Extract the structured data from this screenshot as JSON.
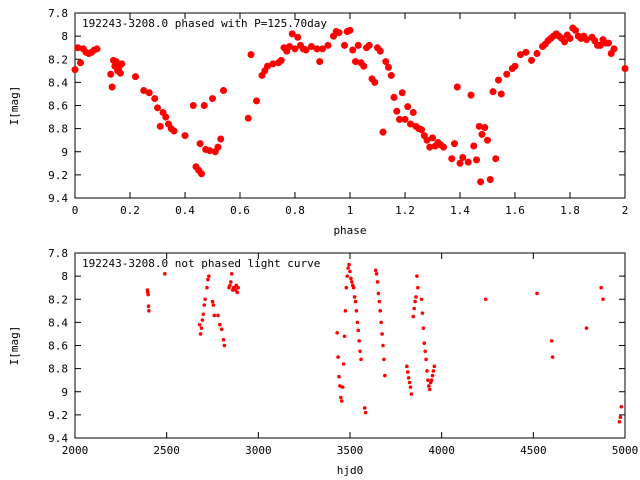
{
  "chart_data": [
    {
      "type": "scatter",
      "title": "192243-3208.0 phased with P=125.70day",
      "xlabel": "phase",
      "ylabel": "I[mag]",
      "xlim": [
        0,
        2
      ],
      "ylim": [
        7.8,
        9.4
      ],
      "y_inverted": true,
      "xticks": [
        "0",
        "0.2",
        "0.4",
        "0.6",
        "0.8",
        "1",
        "1.2",
        "1.4",
        "1.6",
        "1.8",
        "2"
      ],
      "yticks": [
        "7.8",
        "8",
        "8.2",
        "8.4",
        "8.6",
        "8.8",
        "9",
        "9.2",
        "9.4"
      ],
      "marker": "filled-circle-large",
      "color": "#ff0000",
      "series": [
        {
          "points": [
            [
              0.0,
              8.29
            ],
            [
              0.01,
              8.1
            ],
            [
              0.02,
              8.23
            ],
            [
              0.03,
              8.11
            ],
            [
              0.04,
              8.14
            ],
            [
              0.05,
              8.15
            ],
            [
              0.06,
              8.14
            ],
            [
              0.07,
              8.12
            ],
            [
              0.08,
              8.11
            ],
            [
              0.13,
              8.33
            ],
            [
              0.135,
              8.44
            ],
            [
              0.14,
              8.21
            ],
            [
              0.145,
              8.26
            ],
            [
              0.15,
              8.22
            ],
            [
              0.155,
              8.3
            ],
            [
              0.16,
              8.27
            ],
            [
              0.165,
              8.32
            ],
            [
              0.17,
              8.24
            ],
            [
              0.22,
              8.35
            ],
            [
              0.25,
              8.47
            ],
            [
              0.27,
              8.49
            ],
            [
              0.29,
              8.54
            ],
            [
              0.3,
              8.62
            ],
            [
              0.31,
              8.78
            ],
            [
              0.32,
              8.66
            ],
            [
              0.33,
              8.7
            ],
            [
              0.34,
              8.76
            ],
            [
              0.35,
              8.8
            ],
            [
              0.36,
              8.82
            ],
            [
              0.4,
              8.86
            ],
            [
              0.43,
              8.6
            ],
            [
              0.44,
              9.13
            ],
            [
              0.45,
              9.16
            ],
            [
              0.455,
              8.93
            ],
            [
              0.46,
              9.19
            ],
            [
              0.47,
              8.6
            ],
            [
              0.475,
              8.98
            ],
            [
              0.49,
              8.99
            ],
            [
              0.5,
              8.54
            ],
            [
              0.51,
              9.0
            ],
            [
              0.52,
              8.96
            ],
            [
              0.53,
              8.89
            ],
            [
              0.54,
              8.47
            ],
            [
              0.63,
              8.71
            ],
            [
              0.64,
              8.16
            ],
            [
              0.66,
              8.56
            ],
            [
              0.68,
              8.34
            ],
            [
              0.69,
              8.3
            ],
            [
              0.7,
              8.26
            ],
            [
              0.72,
              8.24
            ],
            [
              0.74,
              8.23
            ],
            [
              0.75,
              8.21
            ],
            [
              0.76,
              8.1
            ],
            [
              0.77,
              8.13
            ],
            [
              0.78,
              8.09
            ],
            [
              0.79,
              7.98
            ],
            [
              0.8,
              8.11
            ],
            [
              0.81,
              8.01
            ],
            [
              0.82,
              8.08
            ],
            [
              0.83,
              8.11
            ],
            [
              0.84,
              8.12
            ],
            [
              0.86,
              8.09
            ],
            [
              0.88,
              8.11
            ],
            [
              0.89,
              8.22
            ],
            [
              0.9,
              8.11
            ],
            [
              0.92,
              8.08
            ],
            [
              0.94,
              8.0
            ],
            [
              0.95,
              7.96
            ],
            [
              0.96,
              7.97
            ],
            [
              0.98,
              8.08
            ],
            [
              0.99,
              7.96
            ],
            [
              1.0,
              7.95
            ],
            [
              1.01,
              8.12
            ],
            [
              1.02,
              8.22
            ],
            [
              1.03,
              8.08
            ],
            [
              1.04,
              8.23
            ],
            [
              1.05,
              8.26
            ],
            [
              1.06,
              8.1
            ],
            [
              1.07,
              8.08
            ],
            [
              1.08,
              8.37
            ],
            [
              1.09,
              8.4
            ],
            [
              1.1,
              8.1
            ],
            [
              1.11,
              8.13
            ],
            [
              1.12,
              8.83
            ],
            [
              1.13,
              8.22
            ],
            [
              1.14,
              8.27
            ],
            [
              1.15,
              8.34
            ],
            [
              1.16,
              8.53
            ],
            [
              1.17,
              8.65
            ],
            [
              1.18,
              8.72
            ],
            [
              1.19,
              8.49
            ],
            [
              1.2,
              8.72
            ],
            [
              1.21,
              8.61
            ],
            [
              1.22,
              8.76
            ],
            [
              1.23,
              8.66
            ],
            [
              1.24,
              8.78
            ],
            [
              1.25,
              8.8
            ],
            [
              1.26,
              8.81
            ],
            [
              1.27,
              8.86
            ],
            [
              1.28,
              8.9
            ],
            [
              1.29,
              8.96
            ],
            [
              1.3,
              8.88
            ],
            [
              1.31,
              8.95
            ],
            [
              1.32,
              8.92
            ],
            [
              1.33,
              8.94
            ],
            [
              1.34,
              8.96
            ],
            [
              1.37,
              9.06
            ],
            [
              1.38,
              8.93
            ],
            [
              1.39,
              8.44
            ],
            [
              1.4,
              9.1
            ],
            [
              1.41,
              9.05
            ],
            [
              1.43,
              9.09
            ],
            [
              1.44,
              8.51
            ],
            [
              1.45,
              8.95
            ],
            [
              1.46,
              9.07
            ],
            [
              1.47,
              8.78
            ],
            [
              1.475,
              9.26
            ],
            [
              1.48,
              8.85
            ],
            [
              1.49,
              8.79
            ],
            [
              1.5,
              8.9
            ],
            [
              1.51,
              9.24
            ],
            [
              1.52,
              8.48
            ],
            [
              1.53,
              9.06
            ],
            [
              1.54,
              8.38
            ],
            [
              1.55,
              8.5
            ],
            [
              1.57,
              8.33
            ],
            [
              1.59,
              8.28
            ],
            [
              1.6,
              8.26
            ],
            [
              1.62,
              8.16
            ],
            [
              1.64,
              8.14
            ],
            [
              1.66,
              8.21
            ],
            [
              1.68,
              8.15
            ],
            [
              1.7,
              8.09
            ],
            [
              1.71,
              8.07
            ],
            [
              1.72,
              8.04
            ],
            [
              1.73,
              8.02
            ],
            [
              1.74,
              8.0
            ],
            [
              1.75,
              7.98
            ],
            [
              1.76,
              8.0
            ],
            [
              1.77,
              8.02
            ],
            [
              1.78,
              8.05
            ],
            [
              1.79,
              7.99
            ],
            [
              1.8,
              8.02
            ],
            [
              1.81,
              7.93
            ],
            [
              1.82,
              7.95
            ],
            [
              1.83,
              8.0
            ],
            [
              1.84,
              8.02
            ],
            [
              1.85,
              8.0
            ],
            [
              1.86,
              8.03
            ],
            [
              1.88,
              8.01
            ],
            [
              1.89,
              8.04
            ],
            [
              1.9,
              8.08
            ],
            [
              1.91,
              8.08
            ],
            [
              1.92,
              8.03
            ],
            [
              1.93,
              8.06
            ],
            [
              1.94,
              8.06
            ],
            [
              1.95,
              8.15
            ],
            [
              1.96,
              8.11
            ],
            [
              2.0,
              8.28
            ]
          ]
        }
      ]
    },
    {
      "type": "scatter",
      "title": "192243-3208.0 not phased light curve",
      "xlabel": "hjd0",
      "ylabel": "I[mag]",
      "xlim": [
        2000,
        5000
      ],
      "ylim": [
        7.8,
        9.4
      ],
      "y_inverted": true,
      "xticks": [
        "2000",
        "2500",
        "3000",
        "3500",
        "4000",
        "4500",
        "5000"
      ],
      "yticks": [
        "7.8",
        "8",
        "8.2",
        "8.4",
        "8.6",
        "8.8",
        "9",
        "9.2",
        "9.4"
      ],
      "marker": "filled-circle-small",
      "color": "#ff0000",
      "series": [
        {
          "points": [
            [
              2395,
              8.12
            ],
            [
              2397,
              8.14
            ],
            [
              2399,
              8.16
            ],
            [
              2401,
              8.26
            ],
            [
              2403,
              8.3
            ],
            [
              2490,
              7.98
            ],
            [
              2680,
              8.42
            ],
            [
              2685,
              8.5
            ],
            [
              2690,
              8.45
            ],
            [
              2695,
              8.38
            ],
            [
              2700,
              8.33
            ],
            [
              2705,
              8.25
            ],
            [
              2710,
              8.2
            ],
            [
              2720,
              8.1
            ],
            [
              2725,
              8.03
            ],
            [
              2730,
              8.0
            ],
            [
              2750,
              8.22
            ],
            [
              2755,
              8.25
            ],
            [
              2760,
              8.34
            ],
            [
              2780,
              8.34
            ],
            [
              2790,
              8.42
            ],
            [
              2800,
              8.46
            ],
            [
              2810,
              8.55
            ],
            [
              2815,
              8.6
            ],
            [
              2840,
              8.1
            ],
            [
              2845,
              8.08
            ],
            [
              2850,
              8.05
            ],
            [
              2855,
              7.98
            ],
            [
              2860,
              8.12
            ],
            [
              2865,
              8.1
            ],
            [
              2870,
              8.1
            ],
            [
              2875,
              8.12
            ],
            [
              2880,
              8.08
            ],
            [
              2885,
              8.14
            ],
            [
              2890,
              8.1
            ],
            [
              3430,
              8.49
            ],
            [
              3435,
              8.7
            ],
            [
              3440,
              8.87
            ],
            [
              3445,
              8.95
            ],
            [
              3450,
              9.05
            ],
            [
              3455,
              9.08
            ],
            [
              3460,
              8.96
            ],
            [
              3465,
              8.76
            ],
            [
              3470,
              8.52
            ],
            [
              3475,
              8.3
            ],
            [
              3480,
              8.1
            ],
            [
              3485,
              8.0
            ],
            [
              3490,
              7.93
            ],
            [
              3495,
              7.9
            ],
            [
              3500,
              7.96
            ],
            [
              3505,
              8.02
            ],
            [
              3510,
              8.05
            ],
            [
              3515,
              8.08
            ],
            [
              3520,
              8.1
            ],
            [
              3525,
              8.18
            ],
            [
              3530,
              8.22
            ],
            [
              3535,
              8.3
            ],
            [
              3540,
              8.4
            ],
            [
              3545,
              8.47
            ],
            [
              3550,
              8.56
            ],
            [
              3555,
              8.65
            ],
            [
              3560,
              8.72
            ],
            [
              3580,
              9.14
            ],
            [
              3585,
              9.18
            ],
            [
              3640,
              7.95
            ],
            [
              3645,
              7.98
            ],
            [
              3650,
              8.05
            ],
            [
              3655,
              8.15
            ],
            [
              3660,
              8.22
            ],
            [
              3665,
              8.3
            ],
            [
              3670,
              8.4
            ],
            [
              3675,
              8.5
            ],
            [
              3680,
              8.6
            ],
            [
              3685,
              8.72
            ],
            [
              3690,
              8.86
            ],
            [
              3810,
              8.78
            ],
            [
              3815,
              8.83
            ],
            [
              3820,
              8.88
            ],
            [
              3825,
              8.92
            ],
            [
              3830,
              8.96
            ],
            [
              3835,
              9.02
            ],
            [
              3845,
              8.35
            ],
            [
              3850,
              8.28
            ],
            [
              3855,
              8.22
            ],
            [
              3860,
              8.18
            ],
            [
              3865,
              8.0
            ],
            [
              3870,
              8.1
            ],
            [
              3890,
              8.2
            ],
            [
              3895,
              8.32
            ],
            [
              3900,
              8.45
            ],
            [
              3905,
              8.58
            ],
            [
              3910,
              8.65
            ],
            [
              3915,
              8.72
            ],
            [
              3920,
              8.82
            ],
            [
              3925,
              8.9
            ],
            [
              3930,
              8.95
            ],
            [
              3935,
              8.98
            ],
            [
              3940,
              8.92
            ],
            [
              3945,
              8.9
            ],
            [
              3950,
              8.86
            ],
            [
              3955,
              8.82
            ],
            [
              3960,
              8.78
            ],
            [
              4240,
              8.2
            ],
            [
              4520,
              8.15
            ],
            [
              4600,
              8.56
            ],
            [
              4605,
              8.7
            ],
            [
              4790,
              8.45
            ],
            [
              4870,
              8.1
            ],
            [
              4880,
              8.2
            ],
            [
              4970,
              9.26
            ],
            [
              4975,
              9.22
            ],
            [
              4980,
              9.13
            ]
          ]
        }
      ]
    }
  ]
}
